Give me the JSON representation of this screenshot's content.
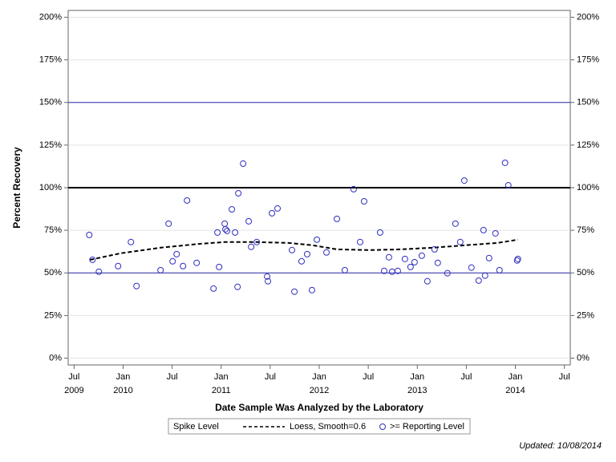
{
  "chart_data": {
    "type": "scatter",
    "xlabel": "Date Sample Was Analyzed by the Laboratory",
    "ylabel": "Percent Recovery",
    "footnote": "Updated: 10/08/2014",
    "legend_title": "Spike Level",
    "legend": "bottom",
    "grid": true,
    "xlim": [
      2009.44,
      2014.56
    ],
    "ylim": [
      -4,
      204
    ],
    "xticks": [
      {
        "value": 2009.5,
        "label": "Jul"
      },
      {
        "value": 2010.0,
        "label": "Jan"
      },
      {
        "value": 2010.5,
        "label": "Jul"
      },
      {
        "value": 2011.0,
        "label": "Jan"
      },
      {
        "value": 2011.5,
        "label": "Jul"
      },
      {
        "value": 2012.0,
        "label": "Jan"
      },
      {
        "value": 2012.5,
        "label": "Jul"
      },
      {
        "value": 2013.0,
        "label": "Jan"
      },
      {
        "value": 2013.5,
        "label": "Jul"
      },
      {
        "value": 2014.0,
        "label": "Jan"
      },
      {
        "value": 2014.5,
        "label": "Jul"
      }
    ],
    "xtick_years": [
      {
        "value": 2009.5,
        "label": "2009"
      },
      {
        "value": 2010.0,
        "label": "2010"
      },
      {
        "value": 2011.0,
        "label": "2011"
      },
      {
        "value": 2012.0,
        "label": "2012"
      },
      {
        "value": 2013.0,
        "label": "2013"
      },
      {
        "value": 2014.0,
        "label": "2014"
      }
    ],
    "yticks": [
      {
        "value": 0,
        "label": "0%"
      },
      {
        "value": 25,
        "label": "25%"
      },
      {
        "value": 50,
        "label": "50%"
      },
      {
        "value": 75,
        "label": "75%"
      },
      {
        "value": 100,
        "label": "100%"
      },
      {
        "value": 125,
        "label": "125%"
      },
      {
        "value": 150,
        "label": "150%"
      },
      {
        "value": 175,
        "label": "175%"
      },
      {
        "value": 200,
        "label": "200%"
      }
    ],
    "reference_lines": [
      {
        "value": 50,
        "color": "#2b2ba8",
        "width": 1
      },
      {
        "value": 100,
        "color": "#000000",
        "width": 2
      },
      {
        "value": 150,
        "color": "#2b2ba8",
        "width": 1
      }
    ],
    "series": [
      {
        "name": "Loess, Smooth=0.6",
        "type": "line",
        "color": "#000000",
        "dashed": true,
        "x": [
          2009.663,
          2009.974,
          2010.382,
          2010.791,
          2011.036,
          2011.363,
          2011.69,
          2011.935,
          2012.18,
          2012.507,
          2012.833,
          2013.16,
          2013.487,
          2013.814,
          2014.026
        ],
        "values": [
          57.7,
          61.5,
          64.8,
          67.1,
          68.1,
          68.1,
          67.6,
          66.2,
          63.8,
          63.4,
          63.8,
          64.8,
          66.2,
          67.6,
          69.5
        ]
      },
      {
        "name": ">= Reporting Level",
        "type": "scatter",
        "color": "#3030c0",
        "x": [
          2009.655,
          2009.688,
          2009.753,
          2009.949,
          2010.08,
          2010.137,
          2010.382,
          2010.464,
          2010.505,
          2010.546,
          2010.611,
          2010.652,
          2010.75,
          2010.922,
          2010.962,
          2010.979,
          2011.036,
          2011.044,
          2011.06,
          2011.109,
          2011.142,
          2011.167,
          2011.175,
          2011.224,
          2011.281,
          2011.306,
          2011.363,
          2011.469,
          2011.477,
          2011.518,
          2011.575,
          2011.722,
          2011.747,
          2011.82,
          2011.877,
          2011.926,
          2011.976,
          2012.074,
          2012.18,
          2012.261,
          2012.351,
          2012.417,
          2012.458,
          2012.621,
          2012.662,
          2012.711,
          2012.743,
          2012.801,
          2012.874,
          2012.931,
          2012.972,
          2013.046,
          2013.103,
          2013.176,
          2013.209,
          2013.307,
          2013.389,
          2013.438,
          2013.479,
          2013.552,
          2013.626,
          2013.675,
          2013.691,
          2013.732,
          2013.797,
          2013.838,
          2013.895,
          2013.928,
          2014.018,
          2014.026
        ],
        "values": [
          72.3,
          57.7,
          50.7,
          54.0,
          68.1,
          42.3,
          51.6,
          78.9,
          56.8,
          61.0,
          54.0,
          92.5,
          55.9,
          40.8,
          73.7,
          53.5,
          78.9,
          75.6,
          74.6,
          87.3,
          73.7,
          41.8,
          96.7,
          114.1,
          80.3,
          65.3,
          68.1,
          47.9,
          45.1,
          85.0,
          87.8,
          63.4,
          39.0,
          56.8,
          61.0,
          39.9,
          69.5,
          62.0,
          81.7,
          51.6,
          99.1,
          68.1,
          92.0,
          73.7,
          51.2,
          59.2,
          50.7,
          51.2,
          58.2,
          53.5,
          56.3,
          60.1,
          45.1,
          63.8,
          55.9,
          49.8,
          78.9,
          68.1,
          104.2,
          53.1,
          45.5,
          75.1,
          48.4,
          58.7,
          73.2,
          51.6,
          114.6,
          101.4,
          57.3,
          58.2
        ]
      }
    ]
  }
}
